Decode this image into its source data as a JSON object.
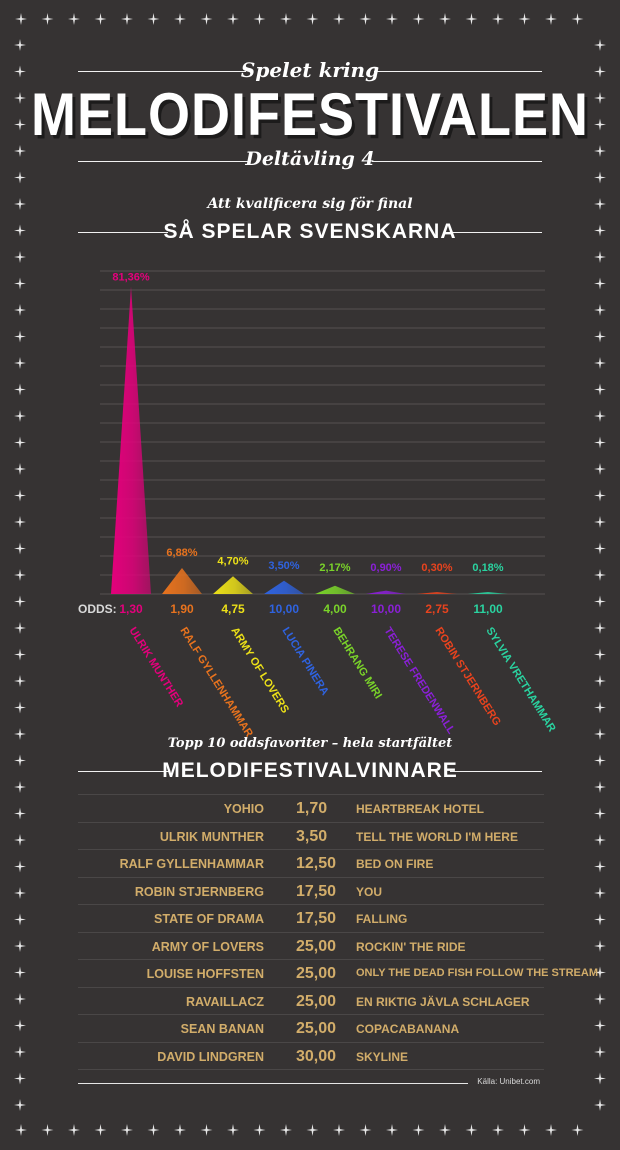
{
  "header": {
    "kicker": "Spelet kring",
    "title": "MELODIFESTIVALEN",
    "subtitle": "Deltävling 4"
  },
  "section1": {
    "kicker": "Att kvalificera sig för final",
    "title": "SÅ SPELAR SVENSKARNA"
  },
  "chart_data": {
    "type": "bar",
    "ylim": [
      0,
      85
    ],
    "grid": true,
    "odds_label": "ODDS:",
    "categories": [
      "ULRIK MUNTHER",
      "RALF GYLLENHAMMAR",
      "ARMY OF LOVERS",
      "LUCIA PINERA",
      "BEHRANG MIRI",
      "TERESE FREDENWALL",
      "ROBIN STJERNBERG",
      "SYLVIA VRETHAMMAR"
    ],
    "values": [
      81.36,
      6.88,
      4.7,
      3.5,
      2.17,
      0.9,
      0.3,
      0.18
    ],
    "value_labels": [
      "81,36%",
      "6,88%",
      "4,70%",
      "3,50%",
      "2,17%",
      "0,90%",
      "0,30%",
      "0,18%"
    ],
    "odds": [
      "1,30",
      "1,90",
      "4,75",
      "10,00",
      "4,00",
      "10,00",
      "2,75",
      "11,00"
    ],
    "colors": [
      "#e4007c",
      "#e8731e",
      "#ece018",
      "#2f63e0",
      "#7ad32a",
      "#8a20d6",
      "#e8431e",
      "#2ad3a0"
    ]
  },
  "section2": {
    "kicker": "Topp 10 oddsfavoriter – hela startfältet",
    "title": "MELODIFESTIVALVINNARE"
  },
  "table": {
    "rows": [
      {
        "artist": "YOHIO",
        "odds": "1,70",
        "song": "HEARTBREAK HOTEL"
      },
      {
        "artist": "ULRIK MUNTHER",
        "odds": "3,50",
        "song": "TELL THE WORLD I'M HERE"
      },
      {
        "artist": "RALF GYLLENHAMMAR",
        "odds": "12,50",
        "song": "BED ON FIRE"
      },
      {
        "artist": "ROBIN STJERNBERG",
        "odds": "17,50",
        "song": "YOU"
      },
      {
        "artist": "STATE OF DRAMA",
        "odds": "17,50",
        "song": "FALLING"
      },
      {
        "artist": "ARMY OF LOVERS",
        "odds": "25,00",
        "song": "ROCKIN' THE RIDE"
      },
      {
        "artist": "LOUISE HOFFSTEN",
        "odds": "25,00",
        "song": "ONLY THE DEAD FISH FOLLOW THE STREAM"
      },
      {
        "artist": "RAVAILLACZ",
        "odds": "25,00",
        "song": "EN RIKTIG JÄVLA SCHLAGER"
      },
      {
        "artist": "SEAN BANAN",
        "odds": "25,00",
        "song": "COPACABANANA"
      },
      {
        "artist": "DAVID LINDGREN",
        "odds": "30,00",
        "song": "SKYLINE"
      }
    ]
  },
  "source": "Källa: Unibet.com"
}
